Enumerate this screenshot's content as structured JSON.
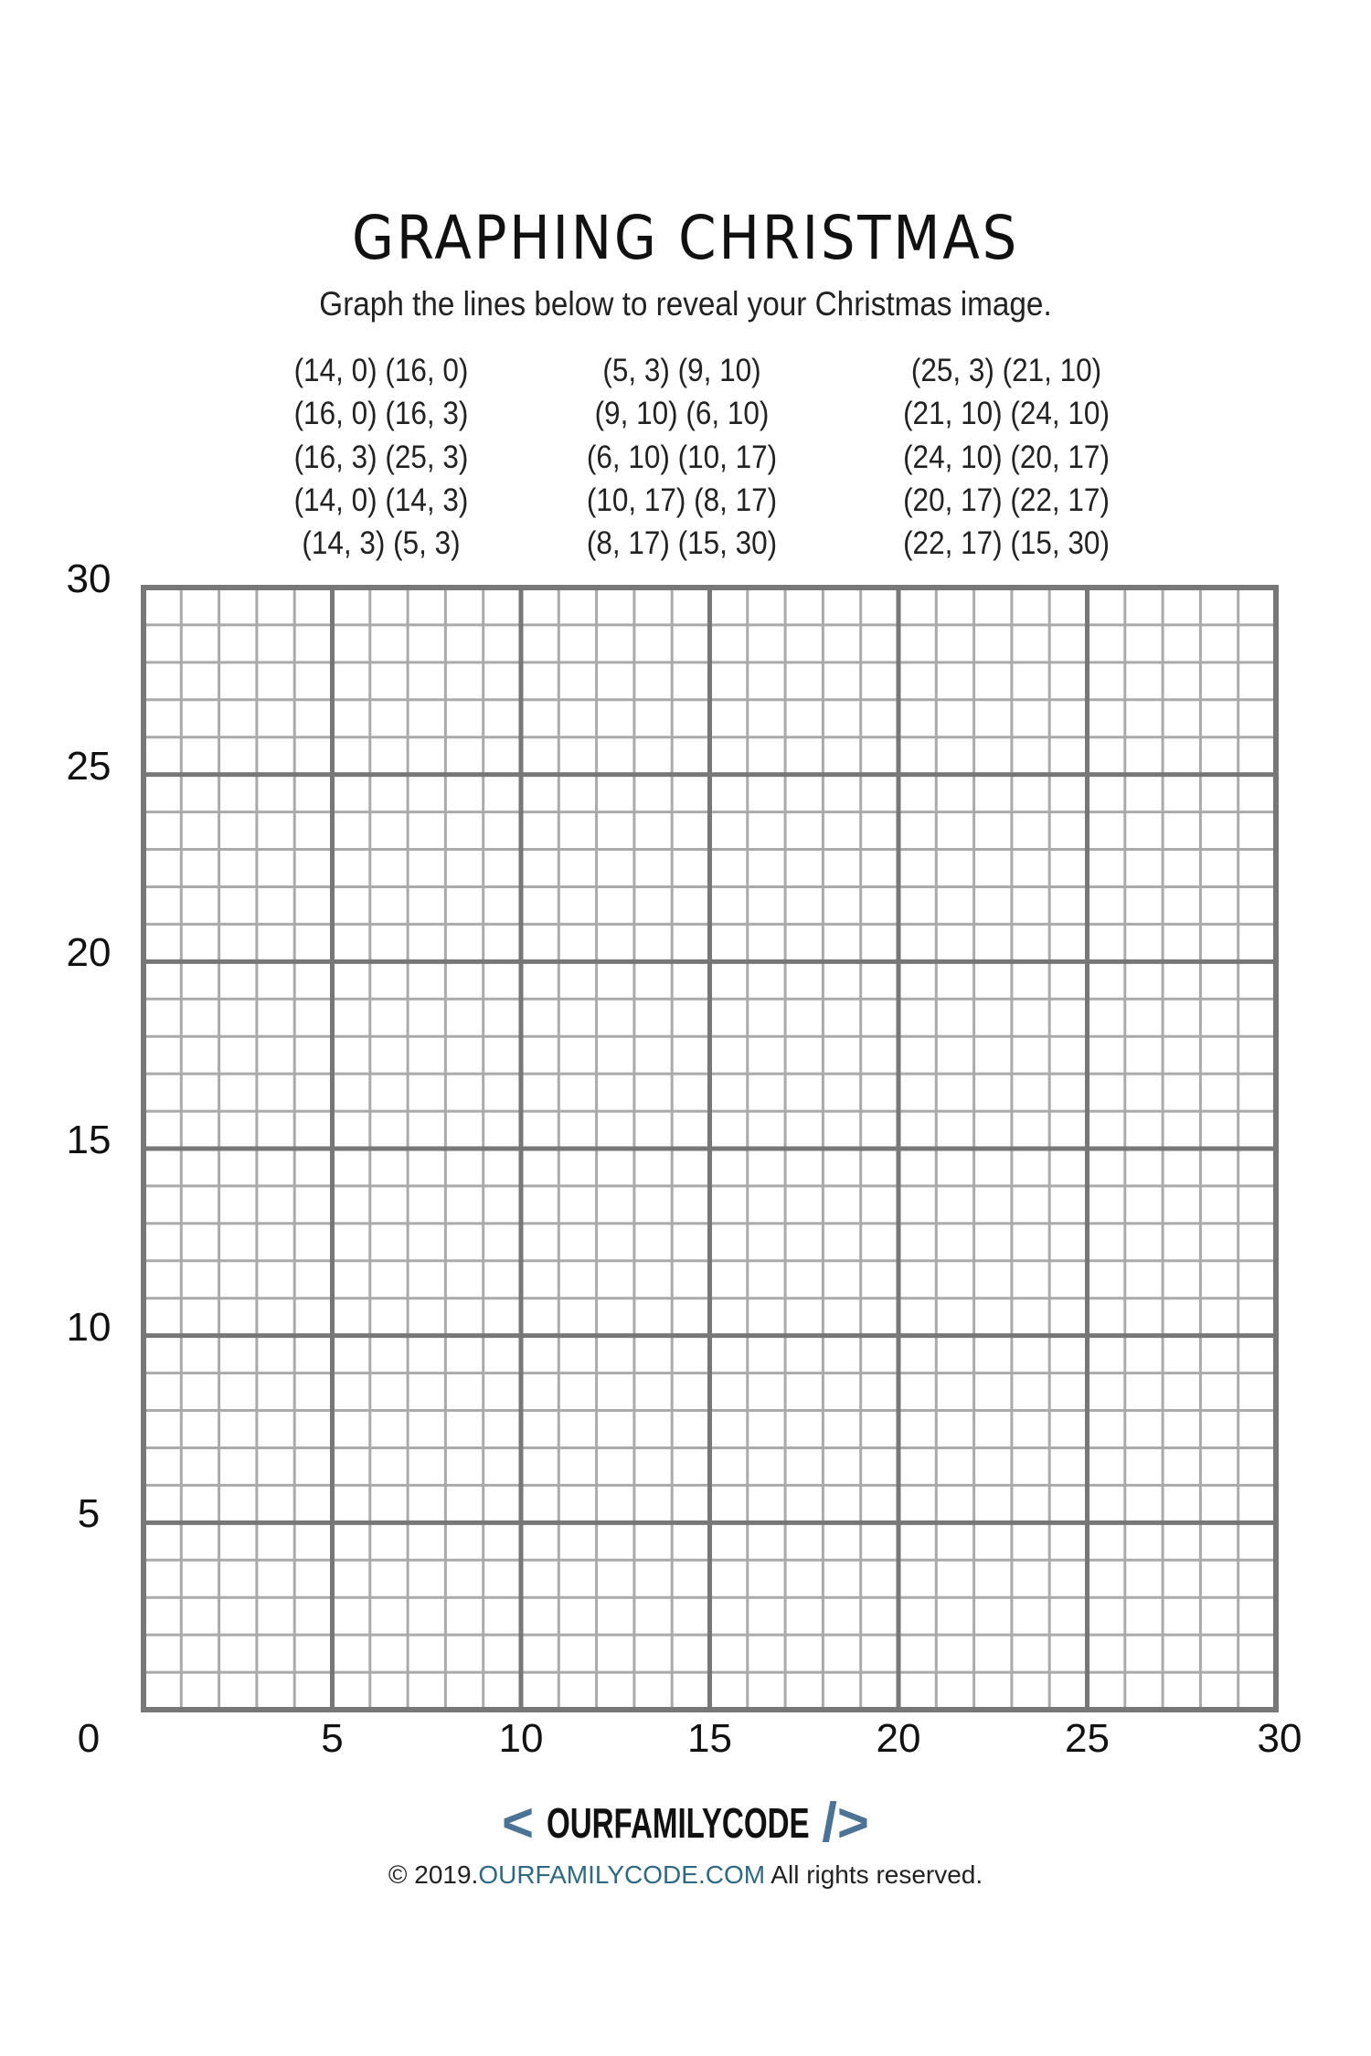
{
  "title": "GRAPHING CHRISTMAS",
  "subtitle": "Graph the lines below to reveal your Christmas image.",
  "coordinate_columns": [
    [
      "(14, 0) (16, 0)",
      "(16, 0) (16, 3)",
      "(16, 3) (25, 3)",
      "(14, 0) (14, 3)",
      "(14, 3) (5, 3)"
    ],
    [
      "(5, 3) (9, 10)",
      "(9, 10) (6, 10)",
      "(6, 10) (10, 17)",
      "(10, 17) (8, 17)",
      "(8, 17) (15, 30)"
    ],
    [
      "(25, 3) (21, 10)",
      "(21, 10) (24, 10)",
      "(24, 10) (20, 17)",
      "(20, 17) (22, 17)",
      "(22, 17) (15, 30)"
    ]
  ],
  "chart_data": {
    "type": "line",
    "title": "",
    "xlim": [
      0,
      30
    ],
    "ylim": [
      0,
      30
    ],
    "grid": true,
    "minor_step": 1,
    "major_step": 5,
    "x_tick_labels": [
      "0",
      "5",
      "10",
      "15",
      "20",
      "25",
      "30"
    ],
    "y_tick_labels": [
      "30",
      "25",
      "20",
      "15",
      "10",
      "5"
    ],
    "series": []
  },
  "colors": {
    "minor_grid": "#aaaaaa",
    "major_grid": "#777777",
    "logo_accent": "#4c7396",
    "link": "#2f6a82"
  },
  "footer": {
    "logo_left": "<",
    "logo_text": "OURFAMILYCODE",
    "logo_right": "/>",
    "copyright_symbol": "©",
    "year": "2019.",
    "link_text": "OURFAMILYCODE.COM",
    "rights": "All rights reserved."
  }
}
